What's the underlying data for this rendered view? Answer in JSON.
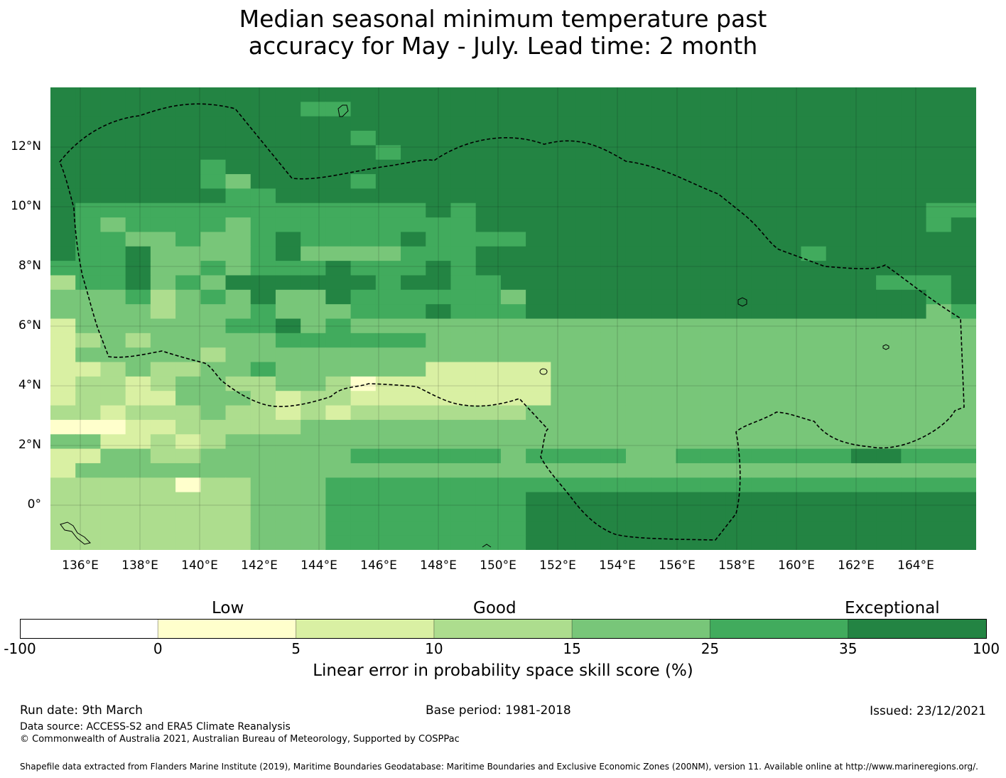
{
  "title_line1": "Median seasonal minimum temperature past",
  "title_line2": "accuracy for May - July. Lead time: 2 month",
  "map": {
    "lon_labels": [
      "136°E",
      "138°E",
      "140°E",
      "142°E",
      "144°E",
      "146°E",
      "148°E",
      "150°E",
      "152°E",
      "154°E",
      "156°E",
      "158°E",
      "160°E",
      "162°E",
      "164°E"
    ],
    "lat_labels": [
      "12°N",
      "10°N",
      "8°N",
      "6°N",
      "4°N",
      "2°N",
      "0°"
    ],
    "grid_legend": {
      "1": "#ffffcc",
      "2": "#d9f0a3",
      "3": "#addd8e",
      "4": "#78c679",
      "5": "#41ab5d",
      "6": "#238443"
    },
    "grid_rows": [
      "6666666666666666666666666666666666666",
      "6666666666556666666666666666666666666",
      "6666666666666666666666666666666666666",
      "6666666666665666666666666666666666666",
      "6666666666666566666666666666666666666",
      "6666665666666666666666666666666666666",
      "6666665466665666666666666666666666666",
      "6666666556666666666666666666666666666",
      "6555555555555556566666666666666666655",
      "6545555455555555566666666666666666656",
      "6554454456555565555666666666666666666",
      "6556444456444455566666666666665666666",
      "5556445455565556566666666666666666666",
      "3556454666666566556666666666666665556",
      "4445345464465555554666666666666666656",
      "4444344454445556555666666666666666645",
      "2444444556454444444444444444444444444",
      "2343444445555554444444444444444444444",
      "2444443444444444444444444444444444444",
      "2234334454444442222244444444444444444",
      "2332344334431222222244444444444444444",
      "2332244432332222222244444444444444444",
      "3323334332323333333444444444444444444",
      "1112233333444444444444444444444444444",
      "4422323444444444444444444444444444444",
      "2244334444445555554555544555555566555",
      "2444444444444444444444444444444444444",
      "3333313344455555555555555555555555555",
      "3333333344455555555666666666666666666",
      "3333333344455555555666666666666666666",
      "3333333344455555555666666666666666666",
      "3333333344455555555666666666666666666"
    ]
  },
  "colorbar": {
    "categories": [
      "Low",
      "Good",
      "Exceptional"
    ],
    "ticks": [
      "-100",
      "0",
      "5",
      "10",
      "15",
      "25",
      "35",
      "100"
    ],
    "colors": [
      "#ffffff",
      "#ffffcc",
      "#d9f0a3",
      "#addd8e",
      "#78c679",
      "#41ab5d",
      "#238443"
    ],
    "xlabel": "Linear error in probability space skill score (%)"
  },
  "footer": {
    "run_date": "Run date: 9th March",
    "base_period": "Base period: 1981-2018",
    "issued": "Issued: 23/12/2021",
    "data_source": "Data source: ACCESS-S2 and ERA5 Climate Reanalysis",
    "copyright": "© Commonwealth of Australia 2021, Australian Bureau of Meteorology, Supported by COSPPac",
    "shapefile": "Shapefile data extracted from Flanders Marine Institute (2019), Maritime Boundaries Geodatabase: Maritime Boundaries and Exclusive Economic Zones (200NM), version 11. Available online at http://www.marineregions.org/."
  }
}
